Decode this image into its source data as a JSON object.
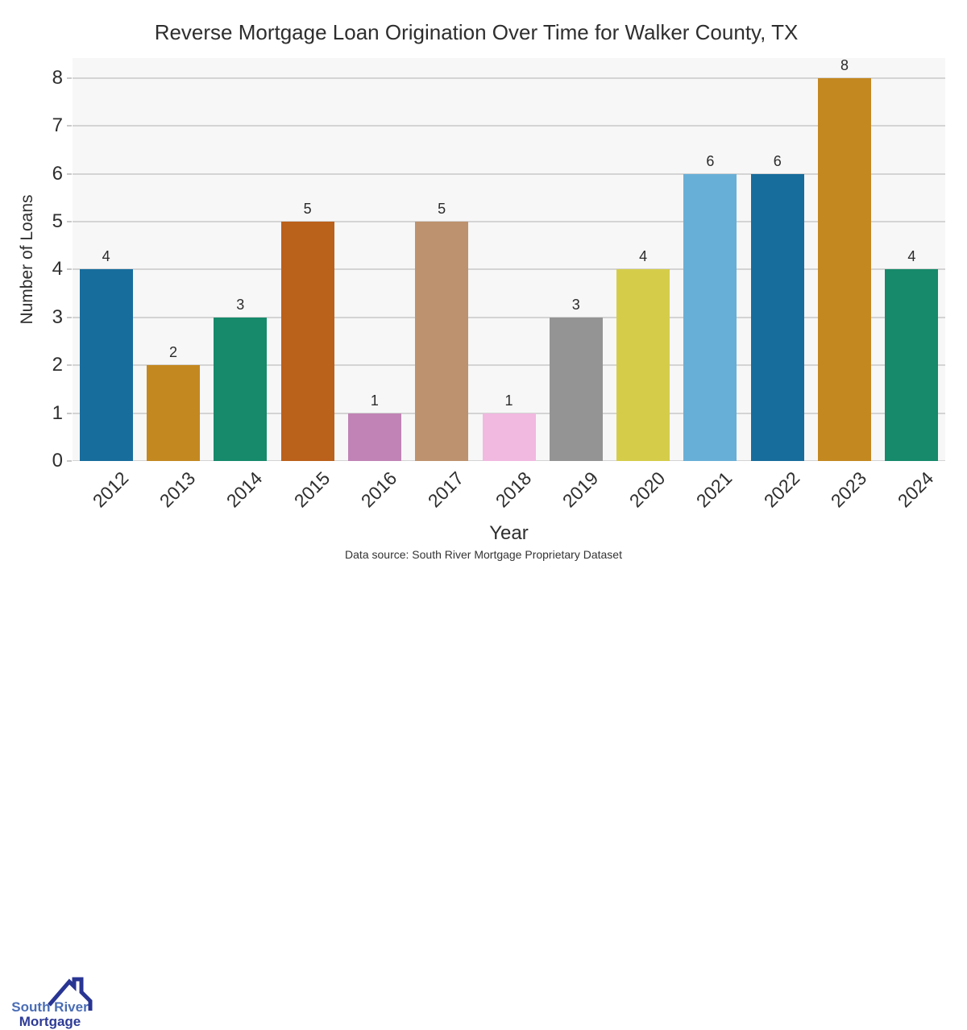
{
  "title": "Reverse Mortgage Loan Origination Over Time for Walker County, TX",
  "source_note": "Data source: South River Mortgage Proprietary Dataset",
  "logo": {
    "line1": "South River",
    "line2": "Mortgage",
    "line1_color": "#4a6db5",
    "line2_color": "#2d3b96",
    "roof_color": "#293593"
  },
  "colors": {
    "plot_background": "#f7f7f7",
    "gridline": "#d4d4d4",
    "tick_mark": "#c9c9c9",
    "text": "#2e2e2e"
  },
  "chart_data": {
    "type": "bar",
    "title": "Reverse Mortgage Loan Origination Over Time for Walker County, TX",
    "xlabel": "Year",
    "ylabel": "Number of Loans",
    "categories": [
      "2012",
      "2013",
      "2014",
      "2015",
      "2016",
      "2017",
      "2018",
      "2019",
      "2020",
      "2021",
      "2022",
      "2023",
      "2024"
    ],
    "values": [
      4,
      2,
      3,
      5,
      1,
      5,
      1,
      3,
      4,
      6,
      6,
      8,
      4
    ],
    "bar_colors": [
      "#176d9c",
      "#c38820",
      "#168a6b",
      "#ba611b",
      "#c183b5",
      "#bd926e",
      "#f1b8e0",
      "#949494",
      "#d5cd4a",
      "#68afd7",
      "#176d9c",
      "#c38820",
      "#168a6b"
    ],
    "value_labels_shown": true,
    "yticks": [
      0,
      1,
      2,
      3,
      4,
      5,
      6,
      7,
      8
    ],
    "ylim": [
      0,
      8.42
    ],
    "grid": "horizontal",
    "legend": "none"
  }
}
